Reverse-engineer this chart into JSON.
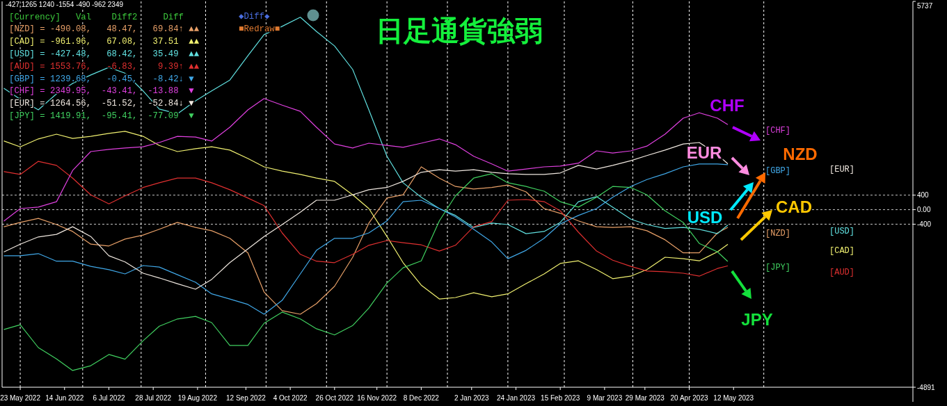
{
  "chart_data": {
    "type": "line",
    "title": "日足通貨強弱",
    "x": [
      "2022-05-15",
      "2022-05-23",
      "2022-06-01",
      "2022-06-10",
      "2022-06-18",
      "2022-06-27",
      "2022-07-06",
      "2022-07-14",
      "2022-07-23",
      "2022-07-31",
      "2022-08-09",
      "2022-08-18",
      "2022-08-26",
      "2022-09-04",
      "2022-09-13",
      "2022-09-21",
      "2022-09-30",
      "2022-10-09",
      "2022-10-17",
      "2022-10-26",
      "2022-11-04",
      "2022-11-12",
      "2022-11-21",
      "2022-11-29",
      "2022-12-08",
      "2022-12-17",
      "2022-12-25",
      "2023-01-03",
      "2023-01-12",
      "2023-01-20",
      "2023-01-29",
      "2023-02-07",
      "2023-02-15",
      "2023-02-24",
      "2023-03-05",
      "2023-03-13",
      "2023-03-22",
      "2023-03-30",
      "2023-04-08",
      "2023-04-17",
      "2023-04-25",
      "2023-05-04",
      "2023-05-09"
    ],
    "xlim": [
      "2022-05-14",
      "2023-08-09"
    ],
    "xticks": [
      {
        "value": "2022-05-23",
        "label": "23 May 2022"
      },
      {
        "value": "2022-06-14",
        "label": "14 Jun 2022"
      },
      {
        "value": "2022-07-06",
        "label": "6 Jul 2022"
      },
      {
        "value": "2022-07-28",
        "label": "28 Jul 2022"
      },
      {
        "value": "2022-08-19",
        "label": "19 Aug 2022"
      },
      {
        "value": "2022-09-12",
        "label": "12 Sep 2022"
      },
      {
        "value": "2022-10-04",
        "label": "4 Oct 2022"
      },
      {
        "value": "2022-10-26",
        "label": "26 Oct 2022"
      },
      {
        "value": "2022-11-16",
        "label": "16 Nov 2022"
      },
      {
        "value": "2022-12-08",
        "label": "8 Dec 2022"
      },
      {
        "value": "2023-01-02",
        "label": "2 Jan 2023"
      },
      {
        "value": "2023-01-24",
        "label": "24 Jan 2023"
      },
      {
        "value": "2023-02-15",
        "label": "15 Feb 2023"
      },
      {
        "value": "2023-03-09",
        "label": "9 Mar 2023"
      },
      {
        "value": "2023-03-29",
        "label": "29 Mar 2023"
      },
      {
        "value": "2023-04-20",
        "label": "20 Apr 2023"
      },
      {
        "value": "2023-05-12",
        "label": "12 May 2023"
      }
    ],
    "ylim": [
      -4891,
      5737
    ],
    "yticks": [
      5737,
      400,
      {
        "value": 0,
        "label": "0.00"
      },
      -400,
      -4891
    ],
    "series": [
      {
        "name": "[NZD]",
        "color": "#e8a068",
        "values": [
          -470,
          -350,
          -240,
          -410,
          -600,
          -950,
          -1000,
          -810,
          -700,
          -540,
          -350,
          -490,
          -580,
          -790,
          -1190,
          -2270,
          -2780,
          -2880,
          -2590,
          -2110,
          -1310,
          -370,
          320,
          410,
          1180,
          870,
          640,
          570,
          610,
          680,
          490,
          30,
          -100,
          -310,
          -470,
          -490,
          -470,
          -580,
          -830,
          -1190,
          -1190,
          -640,
          -490
        ]
      },
      {
        "name": "[CAD]",
        "color": "#f0f070",
        "values": [
          1890,
          1730,
          1950,
          2080,
          1960,
          2020,
          2100,
          2160,
          2020,
          1770,
          1600,
          1680,
          1730,
          1640,
          1410,
          1180,
          1060,
          970,
          870,
          780,
          410,
          30,
          -740,
          -1460,
          -2080,
          -2460,
          -2420,
          -2290,
          -2400,
          -2320,
          -2040,
          -1770,
          -1480,
          -1410,
          -1650,
          -1900,
          -1830,
          -1650,
          -1310,
          -1350,
          -1410,
          -1160,
          -960
        ]
      },
      {
        "name": "[USD]",
        "color": "#60e0e0",
        "values": [
          3340,
          3040,
          2750,
          3190,
          3480,
          3710,
          3920,
          3760,
          3270,
          2770,
          2640,
          3000,
          3270,
          3570,
          4240,
          4820,
          5050,
          5300,
          4910,
          4510,
          3860,
          2750,
          1470,
          740,
          340,
          30,
          -160,
          -490,
          -370,
          -410,
          -660,
          -600,
          -350,
          220,
          360,
          70,
          -260,
          -410,
          -520,
          -490,
          -540,
          -660,
          -430
        ]
      },
      {
        "name": "[AUD]",
        "color": "#e03030",
        "values": [
          1050,
          970,
          1330,
          1220,
          870,
          410,
          160,
          380,
          610,
          740,
          870,
          870,
          740,
          550,
          320,
          110,
          -640,
          -1230,
          -1420,
          -1460,
          -1230,
          -980,
          -850,
          -910,
          -970,
          -1140,
          -980,
          -470,
          -330,
          260,
          280,
          220,
          -30,
          -620,
          -1140,
          -1390,
          -1560,
          -1690,
          -1710,
          -1750,
          -1830,
          -1620,
          -1550
        ]
      },
      {
        "name": "[GBP]",
        "color": "#40a8e8",
        "values": [
          -1270,
          -1270,
          -1210,
          -1420,
          -1420,
          -1560,
          -1650,
          -1770,
          -1540,
          -1580,
          -1790,
          -2000,
          -2320,
          -2460,
          -2610,
          -2880,
          -2500,
          -1770,
          -1120,
          -790,
          -790,
          -640,
          -310,
          220,
          260,
          30,
          -200,
          -540,
          -890,
          -1350,
          -1120,
          -790,
          -390,
          -160,
          30,
          340,
          640,
          830,
          990,
          1180,
          1260,
          1260,
          1240
        ]
      },
      {
        "name": "[CHF]",
        "color": "#e040e0",
        "values": [
          -310,
          30,
          70,
          220,
          1080,
          1600,
          1660,
          1700,
          1730,
          1850,
          2020,
          2000,
          1890,
          2270,
          2750,
          3060,
          2880,
          2710,
          2270,
          1810,
          1700,
          1830,
          1770,
          1720,
          1830,
          1950,
          1790,
          1470,
          1260,
          1060,
          1120,
          1180,
          1200,
          1280,
          1620,
          1560,
          1620,
          1750,
          2080,
          2520,
          2670,
          2520,
          2350
        ]
      },
      {
        "name": "[EUR]",
        "color": "#f0e8e0",
        "values": [
          -1160,
          -950,
          -750,
          -680,
          -470,
          -740,
          -1270,
          -1440,
          -1750,
          -1880,
          -2040,
          -2190,
          -1920,
          -1460,
          -1080,
          -740,
          -410,
          -70,
          260,
          260,
          410,
          550,
          610,
          780,
          1030,
          1100,
          1060,
          1100,
          1030,
          990,
          970,
          970,
          1010,
          1220,
          1120,
          1220,
          1350,
          1490,
          1640,
          1810,
          1850,
          1520,
          1270
        ]
      },
      {
        "name": "[JPY]",
        "color": "#40d060",
        "values": [
          -3300,
          -3170,
          -3800,
          -4110,
          -4430,
          -4300,
          -3990,
          -4120,
          -3610,
          -3210,
          -3010,
          -2940,
          -3110,
          -3740,
          -3740,
          -3130,
          -2820,
          -3010,
          -3280,
          -3450,
          -3190,
          -2710,
          -2020,
          -1600,
          -1410,
          -310,
          380,
          870,
          990,
          740,
          640,
          510,
          220,
          70,
          340,
          640,
          610,
          410,
          -30,
          -350,
          -930,
          -1160,
          -1420
        ]
      }
    ],
    "ref_lines": [
      {
        "axis": "y",
        "value": 400,
        "color": "#c8c8c8",
        "line_style": "dashed"
      },
      {
        "axis": "y",
        "value": 0,
        "color": "#c8c8c8",
        "line_style": "dashed"
      },
      {
        "axis": "y",
        "value": -400,
        "color": "#c8c8c8",
        "line_style": "dashed"
      },
      {
        "axis": "x",
        "value": "2022-05-23",
        "color": "#ffffff",
        "line_style": "dashed"
      },
      {
        "axis": "x",
        "value": "2022-06-23",
        "color": "#ffffff",
        "line_style": "dashed"
      },
      {
        "axis": "x",
        "value": "2022-07-22",
        "color": "#ffffff",
        "line_style": "dashed"
      },
      {
        "axis": "x",
        "value": "2022-08-23",
        "color": "#ffffff",
        "line_style": "dashed"
      },
      {
        "axis": "x",
        "value": "2022-09-22",
        "color": "#ffffff",
        "line_style": "dashed"
      },
      {
        "axis": "x",
        "value": "2022-10-22",
        "color": "#ffffff",
        "line_style": "dashed"
      },
      {
        "axis": "x",
        "value": "2022-11-21",
        "color": "#ffffff",
        "line_style": "dashed"
      },
      {
        "axis": "x",
        "value": "2022-12-21",
        "color": "#ffffff",
        "line_style": "dashed"
      },
      {
        "axis": "x",
        "value": "2023-01-20",
        "color": "#ffffff",
        "line_style": "dashed"
      },
      {
        "axis": "x",
        "value": "2023-02-17",
        "color": "#ffffff",
        "line_style": "dashed"
      },
      {
        "axis": "x",
        "value": "2023-03-23",
        "color": "#ffffff",
        "line_style": "dashed"
      },
      {
        "axis": "x",
        "value": "2023-04-20",
        "color": "#ffffff",
        "line_style": "dashed"
      },
      {
        "axis": "x",
        "value": "2023-05-27",
        "color": "#ffffff",
        "line_style": "dashed"
      }
    ],
    "annotations": [
      "-427 1265 1240 -1554 -490 -962 2349",
      "[Currency]   Val    Diff2     Diff",
      "[NZD] = -490.08,   48.47,   69.84↑ ▲▲",
      "[CAD] = -961.96,   67.08,   37.51  ▲▲",
      "[USD] = -427.48,   68.42,   35.49  ▲▲",
      "[AUD] = 1553.76,   -6.83,    9.39↑ ▲▲",
      "[GBP] = 1239.68,   -0.45,   -8.42↓ ▼",
      "[CHF] = 2349.95,  -43.41,  -13.88  ▼",
      "[EUR] = 1264.56,  -51.52,  -52.84↓ ▼",
      "[JPY] = 1419.91,  -95.41,  -77.09  ▼",
      "◆Diff◆",
      "■Redraw■",
      "CHF",
      "EUR",
      "NZD",
      "USD",
      "CAD",
      "JPY"
    ]
  }
}
